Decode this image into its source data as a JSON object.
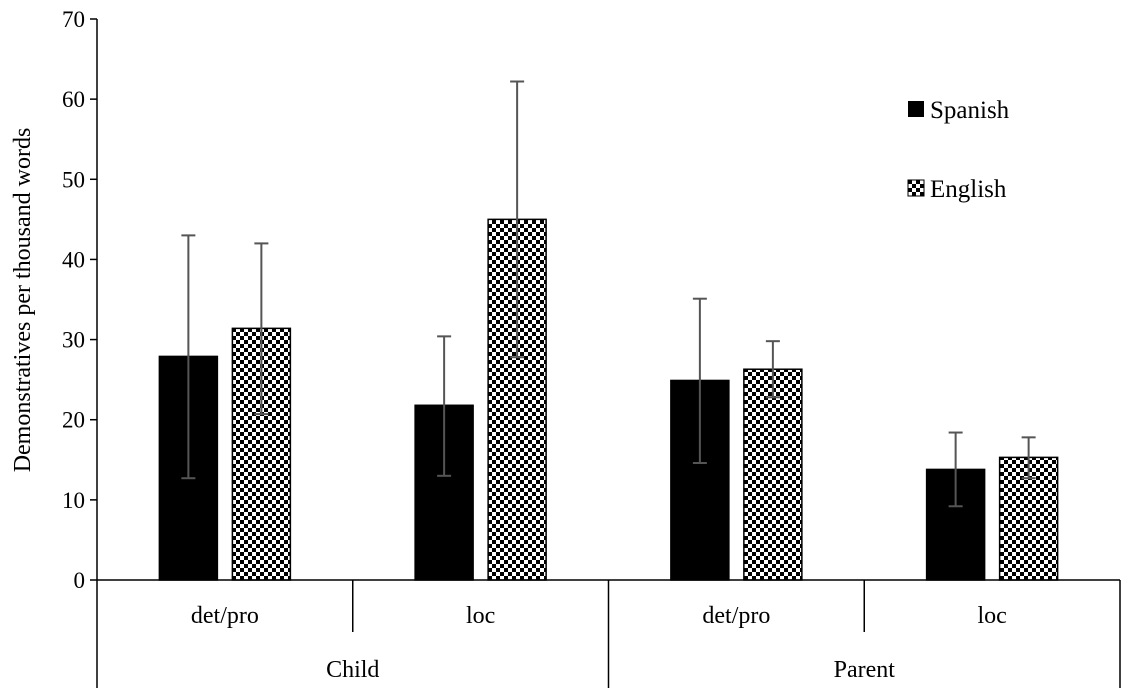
{
  "chart_data": {
    "type": "bar",
    "ylabel": "Demonstratives per thousand words",
    "ylim": [
      0,
      70
    ],
    "yticks": [
      0,
      10,
      20,
      30,
      40,
      50,
      60,
      70
    ],
    "groups": [
      {
        "label": "Child",
        "categories": [
          "det/pro",
          "loc"
        ]
      },
      {
        "label": "Parent",
        "categories": [
          "det/pro",
          "loc"
        ]
      }
    ],
    "categories": [
      "det/pro",
      "loc",
      "det/pro",
      "loc"
    ],
    "series": [
      {
        "name": "Spanish",
        "pattern": "solid",
        "values": [
          27.9,
          21.8,
          24.9,
          13.8
        ],
        "err_low": [
          12.7,
          13.0,
          14.6,
          9.2
        ],
        "err_high": [
          43.0,
          30.4,
          35.1,
          18.4
        ]
      },
      {
        "name": "English",
        "pattern": "checker",
        "values": [
          31.4,
          45.0,
          26.3,
          15.3
        ],
        "err_low": [
          20.7,
          27.8,
          22.8,
          12.7
        ],
        "err_high": [
          42.0,
          62.2,
          29.8,
          17.8
        ]
      }
    ],
    "legend_position": "top-right",
    "grid": false
  },
  "colors": {
    "bar": "#000000",
    "checker_light": "#ffffff",
    "error_bar": "#555555",
    "axis": "#000000"
  }
}
